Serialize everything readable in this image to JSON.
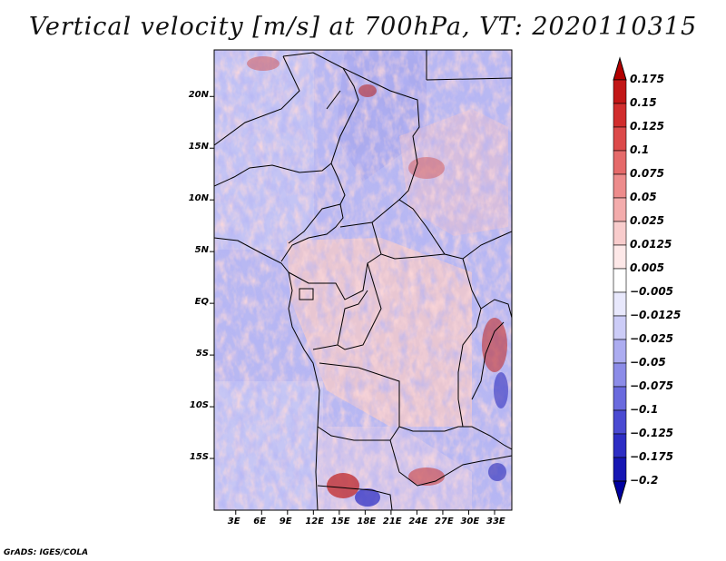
{
  "title": "Vertical velocity [m/s] at 700hPa, VT: 2020110315",
  "credit": "GrADS: IGES/COLA",
  "map": {
    "lat_labels": [
      {
        "text": "20N",
        "lat": 20
      },
      {
        "text": "15N",
        "lat": 15
      },
      {
        "text": "10N",
        "lat": 10
      },
      {
        "text": "5N",
        "lat": 5
      },
      {
        "text": "EQ",
        "lat": 0
      },
      {
        "text": "5S",
        "lat": -5
      },
      {
        "text": "10S",
        "lat": -10
      },
      {
        "text": "15S",
        "lat": -15
      }
    ],
    "lon_labels": [
      {
        "text": "3E",
        "lon": 3
      },
      {
        "text": "6E",
        "lon": 6
      },
      {
        "text": "9E",
        "lon": 9
      },
      {
        "text": "12E",
        "lon": 12
      },
      {
        "text": "15E",
        "lon": 15
      },
      {
        "text": "18E",
        "lon": 18
      },
      {
        "text": "21E",
        "lon": 21
      },
      {
        "text": "24E",
        "lon": 24
      },
      {
        "text": "27E",
        "lon": 27
      },
      {
        "text": "30E",
        "lon": 30
      },
      {
        "text": "33E",
        "lon": 33
      }
    ],
    "lon_range": [
      0.5,
      35.0
    ],
    "lat_range": [
      -20.0,
      24.5
    ]
  },
  "colorbar": {
    "levels": [
      "0.175",
      "0.15",
      "0.125",
      "0.1",
      "0.075",
      "0.05",
      "0.025",
      "0.0125",
      "0.005",
      "−0.005",
      "−0.0125",
      "−0.025",
      "−0.05",
      "−0.075",
      "−0.1",
      "−0.125",
      "−0.175",
      "−0.2"
    ],
    "colors": [
      "#b30000",
      "#c21616",
      "#d12d2d",
      "#dc4a4a",
      "#e56a6a",
      "#ed8c8c",
      "#f3acac",
      "#f8cccc",
      "#fde8e8",
      "#ffffff",
      "#e8e8fc",
      "#ccccf7",
      "#acacf0",
      "#8c8ce8",
      "#6a6ade",
      "#4a4ad2",
      "#2d2dc4",
      "#1616b3",
      "#0000a0"
    ]
  }
}
